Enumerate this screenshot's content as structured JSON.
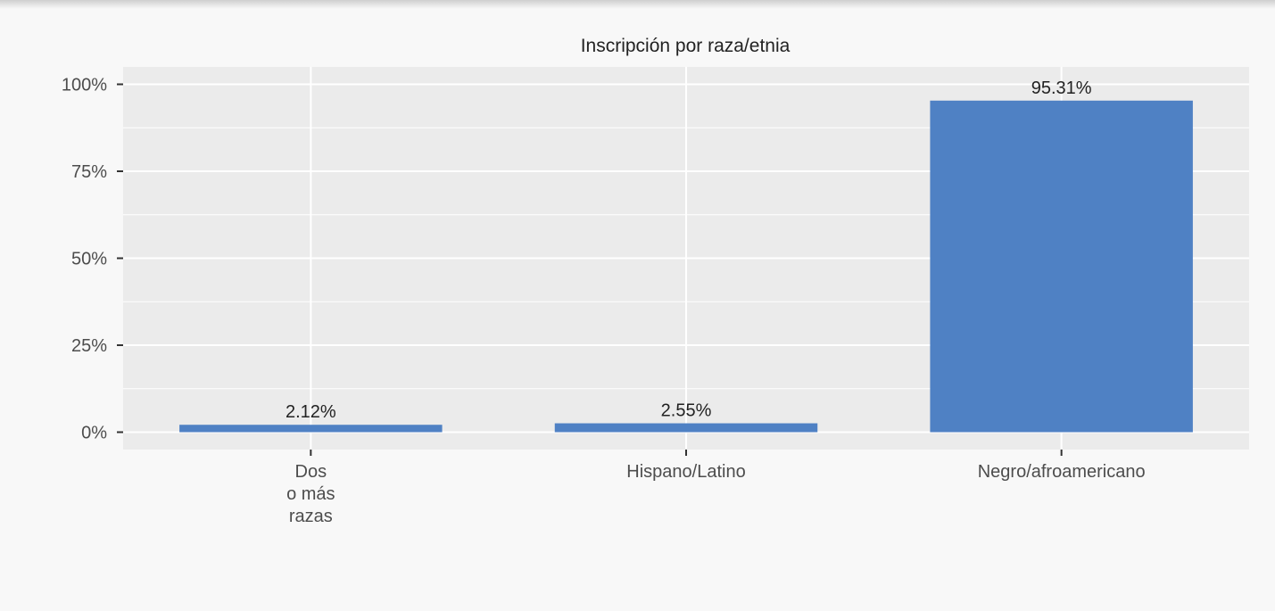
{
  "chart_data": {
    "type": "bar",
    "title": "Inscripción por raza/etnia",
    "xlabel": "",
    "ylabel": "",
    "categories": [
      "Dos\no más\nrazas",
      "Hispano/Latino",
      "Negro/afroamericano"
    ],
    "values": [
      2.12,
      2.55,
      95.31
    ],
    "data_labels": [
      "2.12%",
      "2.55%",
      "95.31%"
    ],
    "ylim": [
      -5,
      105
    ],
    "y_ticks": [
      0,
      25,
      50,
      75,
      100
    ],
    "y_tick_labels": [
      "0%",
      "25%",
      "50%",
      "75%",
      "100%"
    ],
    "grid": true,
    "legend": "none",
    "colors": {
      "bar": "#4f81c4",
      "panel": "#ebebeb",
      "grid": "#ffffff",
      "text": "#222222",
      "axis_text": "#4d4d4d"
    }
  }
}
